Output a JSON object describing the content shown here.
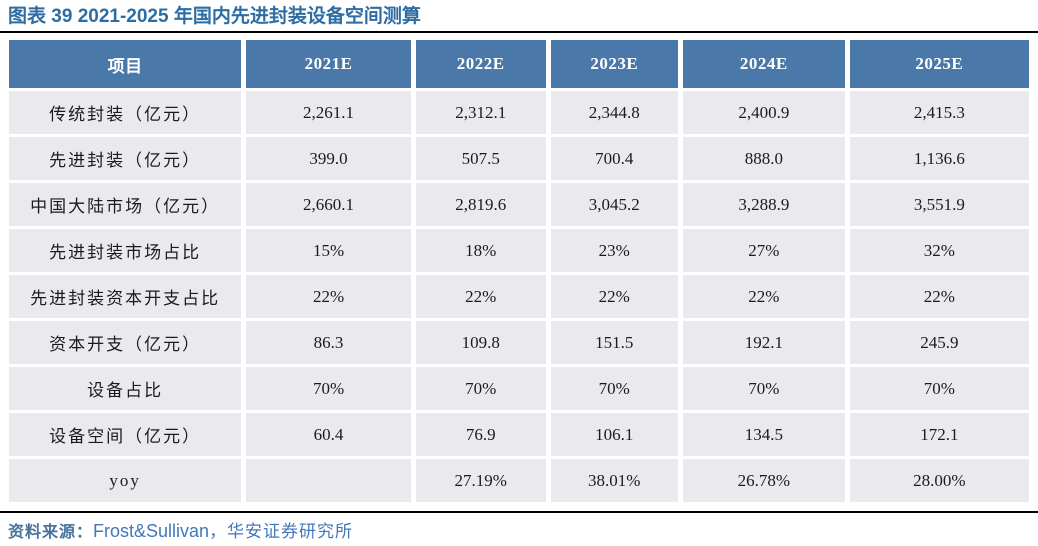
{
  "title": "图表 39 2021-2025 年国内先进封装设备空间测算",
  "table": {
    "header": [
      "项目",
      "2021E",
      "2022E",
      "2023E",
      "2024E",
      "2025E"
    ],
    "rows": [
      {
        "label": "传统封装（亿元）",
        "values": [
          "2,261.1",
          "2,312.1",
          "2,344.8",
          "2,400.9",
          "2,415.3"
        ]
      },
      {
        "label": "先进封装（亿元）",
        "values": [
          "399.0",
          "507.5",
          "700.4",
          "888.0",
          "1,136.6"
        ]
      },
      {
        "label": "中国大陆市场（亿元）",
        "values": [
          "2,660.1",
          "2,819.6",
          "3,045.2",
          "3,288.9",
          "3,551.9"
        ]
      },
      {
        "label": "先进封装市场占比",
        "values": [
          "15%",
          "18%",
          "23%",
          "27%",
          "32%"
        ]
      },
      {
        "label": "先进封装资本开支占比",
        "values": [
          "22%",
          "22%",
          "22%",
          "22%",
          "22%"
        ]
      },
      {
        "label": "资本开支（亿元）",
        "values": [
          "86.3",
          "109.8",
          "151.5",
          "192.1",
          "245.9"
        ]
      },
      {
        "label": "设备占比",
        "values": [
          "70%",
          "70%",
          "70%",
          "70%",
          "70%"
        ]
      },
      {
        "label": "设备空间（亿元）",
        "values": [
          "60.4",
          "76.9",
          "106.1",
          "134.5",
          "172.1"
        ]
      },
      {
        "label": "yoy",
        "values": [
          "",
          "27.19%",
          "38.01%",
          "26.78%",
          "28.00%"
        ]
      }
    ]
  },
  "footer": {
    "label": "资料来源：",
    "source_en": "Frost&Sullivan",
    "source_cn": "，华安证券研究所"
  },
  "colors": {
    "header_bg": "#4a78a8",
    "row_bg": "#eaeaee",
    "title_color": "#2e6da4",
    "footer_label_color": "#47749c",
    "footer_source_color": "#4377bd",
    "rule_color": "#000000"
  }
}
